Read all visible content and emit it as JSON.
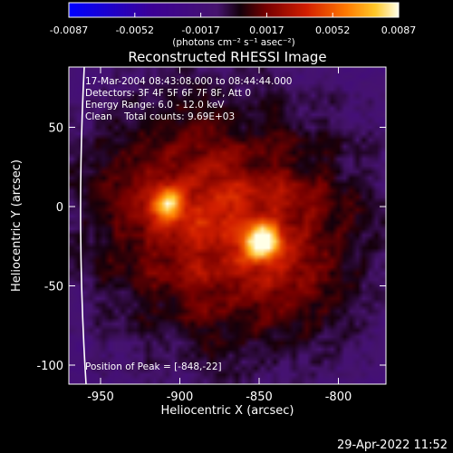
{
  "chart_data": {
    "type": "heatmap",
    "title": "Reconstructed RHESSI Image",
    "xlabel": "Heliocentric X (arcsec)",
    "ylabel": "Heliocentric Y (arcsec)",
    "xlim": [
      -970,
      -770
    ],
    "ylim": [
      -112,
      88
    ],
    "x_ticks": [
      -950,
      -900,
      -850,
      -800
    ],
    "y_ticks": [
      50,
      0,
      -50,
      -100
    ],
    "colorbar": {
      "range": [
        -0.0087,
        0.0087
      ],
      "ticks": [
        "-0.0087",
        "-0.0052",
        "-0.0017",
        "0.0017",
        "0.0052",
        "0.0087"
      ],
      "units_label": "(photons cm⁻² s⁻¹ asec⁻²)",
      "colormap": "hot-with-negative-purple-blue"
    },
    "info_lines": [
      "17-Mar-2004 08:43:08.000 to 08:44:44.000",
      "Detectors: 3F 4F 5F 6F 7F 8F, Att 0",
      "Energy Range: 6.0 - 12.0 keV",
      "Clean    Total counts: 9.69E+03"
    ],
    "peak_label": "Position of Peak = [-848,-22]",
    "sources": [
      {
        "x": -848,
        "y": -22,
        "relative_intensity": 1.0
      },
      {
        "x": -908,
        "y": 2,
        "relative_intensity": 0.62
      }
    ],
    "limb_color": "#ffffff",
    "background_color": "#000000"
  },
  "footer": {
    "date": "29-Apr-2022 11:52"
  }
}
